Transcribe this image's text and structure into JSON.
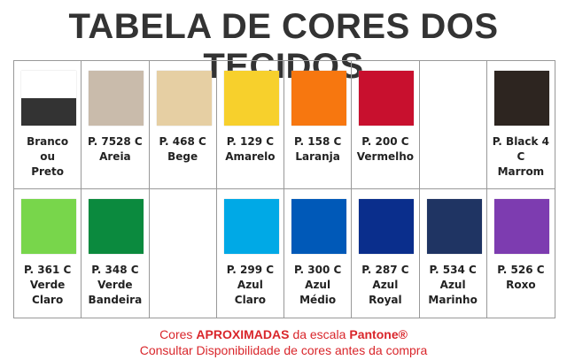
{
  "title": "TABELA DE CORES DOS TECIDOS",
  "table": {
    "rows": [
      {
        "cells": [
          {
            "colors": [
              "#ffffff",
              "#333333"
            ],
            "label": [
              "Branco",
              "ou",
              "Preto"
            ]
          },
          {
            "colors": [
              "#c9bbab"
            ],
            "label": [
              "P. 7528 C",
              "Areia"
            ]
          },
          {
            "colors": [
              "#e6cfa3"
            ],
            "label": [
              "P. 468 C",
              "Bege"
            ]
          },
          {
            "colors": [
              "#f7d02c"
            ],
            "label": [
              "P. 129 C",
              "Amarelo"
            ]
          },
          {
            "colors": [
              "#f7770f"
            ],
            "label": [
              "P. 158 C",
              "Laranja"
            ]
          },
          {
            "colors": [
              "#c8102e"
            ],
            "label": [
              "P. 200 C",
              "Vermelho"
            ]
          },
          null,
          {
            "colors": [
              "#2d2520"
            ],
            "label": [
              "P. Black 4 C",
              "Marrom"
            ]
          }
        ]
      },
      {
        "cells": [
          {
            "colors": [
              "#78d64b"
            ],
            "label": [
              "P. 361 C",
              "Verde",
              "Claro"
            ]
          },
          {
            "colors": [
              "#0b8a3e"
            ],
            "label": [
              "P. 348 C",
              "Verde",
              "Bandeira"
            ]
          },
          null,
          {
            "colors": [
              "#00a9e6"
            ],
            "label": [
              "P. 299 C",
              "Azul",
              "Claro"
            ]
          },
          {
            "colors": [
              "#0059b8"
            ],
            "label": [
              "P. 300 C",
              "Azul",
              "Médio"
            ]
          },
          {
            "colors": [
              "#0a2e8c"
            ],
            "label": [
              "P. 287 C",
              "Azul",
              "Royal"
            ]
          },
          {
            "colors": [
              "#1f3463"
            ],
            "label": [
              "P. 534 C",
              "Azul",
              "Marinho"
            ]
          },
          {
            "colors": [
              "#7d3cb0"
            ],
            "label": [
              "P. 526 C",
              "Roxo"
            ]
          }
        ]
      }
    ]
  },
  "footer": {
    "line1": [
      {
        "text": "Cores",
        "bold": false
      },
      {
        "text": "APROXIMADAS",
        "bold": true
      },
      {
        "text": "da escala",
        "bold": false
      },
      {
        "text": "Pantone®",
        "bold": true
      }
    ],
    "line2": "Consultar Disponibilidade de cores antes da compra"
  }
}
